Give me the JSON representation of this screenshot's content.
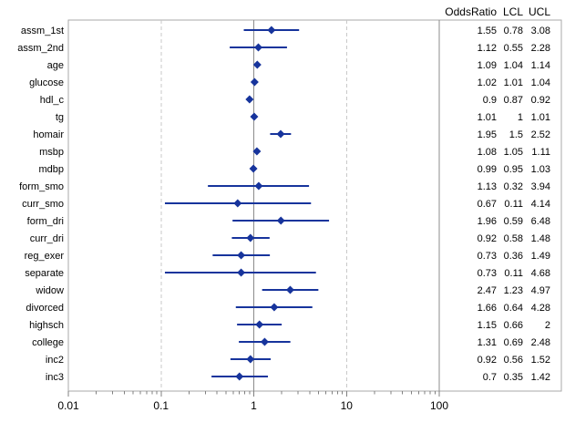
{
  "window": {
    "background": "#ffffff"
  },
  "chart_data": {
    "type": "scatter",
    "subtype": "forest-plot-odds-ratio",
    "title": "",
    "xlabel": "",
    "ylabel": "",
    "x_scale": "log10",
    "x_range": [
      0.01,
      100
    ],
    "x_ticks": [
      "0.01",
      "0.1",
      "1",
      "10",
      "100"
    ],
    "gridlines_x": [
      0.1,
      10
    ],
    "reference_line_x": 1,
    "grid": "vertical dashed at 0.1 and 10, solid at 1",
    "legend": "none",
    "columns": [
      "OddsRatio",
      "LCL",
      "UCL"
    ],
    "rows": [
      {
        "label": "assm_1st",
        "or": 1.55,
        "lcl": 0.78,
        "ucl": 3.08
      },
      {
        "label": "assm_2nd",
        "or": 1.12,
        "lcl": 0.55,
        "ucl": 2.28
      },
      {
        "label": "age",
        "or": 1.09,
        "lcl": 1.04,
        "ucl": 1.14
      },
      {
        "label": "glucose",
        "or": 1.02,
        "lcl": 1.01,
        "ucl": 1.04
      },
      {
        "label": "hdl_c",
        "or": 0.9,
        "lcl": 0.87,
        "ucl": 0.92
      },
      {
        "label": "tg",
        "or": 1.01,
        "lcl": 1,
        "ucl": 1.01
      },
      {
        "label": "homair",
        "or": 1.95,
        "lcl": 1.5,
        "ucl": 2.52
      },
      {
        "label": "msbp",
        "or": 1.08,
        "lcl": 1.05,
        "ucl": 1.11
      },
      {
        "label": "mdbp",
        "or": 0.99,
        "lcl": 0.95,
        "ucl": 1.03
      },
      {
        "label": "form_smo",
        "or": 1.13,
        "lcl": 0.32,
        "ucl": 3.94
      },
      {
        "label": "curr_smo",
        "or": 0.67,
        "lcl": 0.11,
        "ucl": 4.14
      },
      {
        "label": "form_dri",
        "or": 1.96,
        "lcl": 0.59,
        "ucl": 6.48
      },
      {
        "label": "curr_dri",
        "or": 0.92,
        "lcl": 0.58,
        "ucl": 1.48
      },
      {
        "label": "reg_exer",
        "or": 0.73,
        "lcl": 0.36,
        "ucl": 1.49
      },
      {
        "label": "separate",
        "or": 0.73,
        "lcl": 0.11,
        "ucl": 4.68
      },
      {
        "label": "widow",
        "or": 2.47,
        "lcl": 1.23,
        "ucl": 4.97
      },
      {
        "label": "divorced",
        "or": 1.66,
        "lcl": 0.64,
        "ucl": 4.28
      },
      {
        "label": "highsch",
        "or": 1.15,
        "lcl": 0.66,
        "ucl": 2
      },
      {
        "label": "college",
        "or": 1.31,
        "lcl": 0.69,
        "ucl": 2.48
      },
      {
        "label": "inc2",
        "or": 0.92,
        "lcl": 0.56,
        "ucl": 1.52
      },
      {
        "label": "inc3",
        "or": 0.7,
        "lcl": 0.35,
        "ucl": 1.42
      }
    ],
    "colors": {
      "marker": "#17349c",
      "ci_line": "#17349c",
      "reference_line": "#8c8c8c",
      "panel_divider": "#8c8c8c",
      "gridline": "#c9c9c9",
      "frame": "#a9a9a9",
      "tick": "#808080",
      "text": "#000000",
      "background": "#ffffff"
    }
  }
}
